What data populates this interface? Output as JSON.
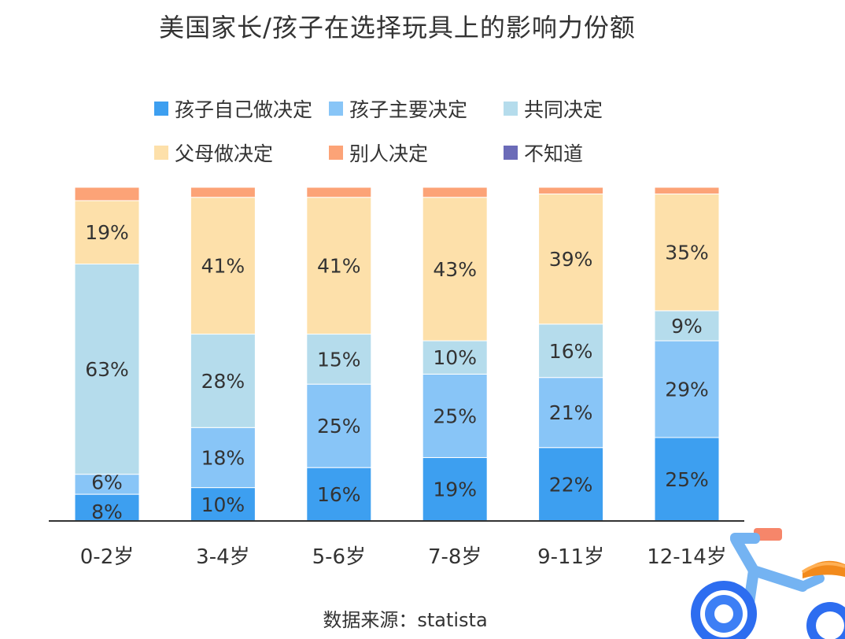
{
  "title": "美国家长/孩子在选择玩具上的影响力份额",
  "source": "数据来源：statista",
  "chart_data": {
    "type": "bar",
    "stacked": true,
    "categories": [
      "0-2岁",
      "3-4岁",
      "5-6岁",
      "7-8岁",
      "9-11岁",
      "12-14岁"
    ],
    "ylim": [
      0,
      100
    ],
    "legend_placement": "top",
    "series": [
      {
        "name": "孩子自己做决定",
        "color": "#3d9ff0",
        "values": [
          8,
          10,
          16,
          19,
          22,
          25
        ]
      },
      {
        "name": "孩子主要决定",
        "color": "#88c5f7",
        "values": [
          6,
          18,
          25,
          25,
          21,
          29
        ]
      },
      {
        "name": "共同决定",
        "color": "#b5dcec",
        "values": [
          63,
          28,
          15,
          10,
          16,
          9
        ]
      },
      {
        "name": "父母做决定",
        "color": "#fde0aa",
        "values": [
          19,
          41,
          41,
          43,
          39,
          35
        ]
      },
      {
        "name": "别人决定",
        "color": "#fca377",
        "values": [
          4,
          3,
          3,
          3,
          2,
          2
        ]
      },
      {
        "name": "不知道",
        "color": "#6b6bb8",
        "values": [
          0,
          0,
          0,
          0,
          0,
          0
        ]
      }
    ],
    "data_labels": [
      [
        "8%",
        "6%",
        "63%",
        "19%"
      ],
      [
        "10%",
        "18%",
        "28%",
        "41%"
      ],
      [
        "16%",
        "25%",
        "15%",
        "41%"
      ],
      [
        "19%",
        "25%",
        "10%",
        "43%"
      ],
      [
        "22%",
        "21%",
        "16%",
        "39%"
      ],
      [
        "25%",
        "29%",
        "9%",
        "35%"
      ]
    ]
  }
}
